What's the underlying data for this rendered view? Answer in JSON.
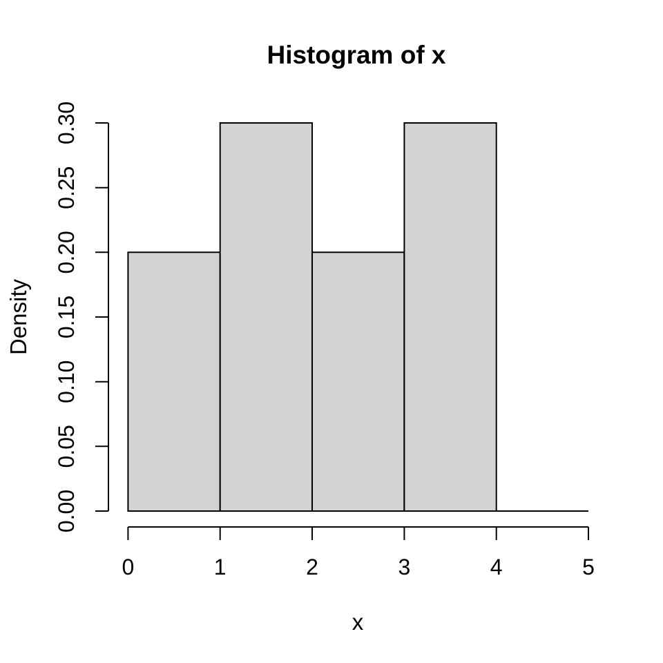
{
  "figure": {
    "background": "#ffffff"
  },
  "chart_data": {
    "type": "bar",
    "subtype": "histogram",
    "title": "Histogram of x",
    "xlabel": "x",
    "ylabel": "Density",
    "bin_edges": [
      0,
      1,
      2,
      3,
      4,
      5
    ],
    "densities": [
      0.2,
      0.3,
      0.2,
      0.3,
      0.0
    ],
    "x_ticks": [
      0,
      1,
      2,
      3,
      4,
      5
    ],
    "x_tick_labels": [
      "0",
      "1",
      "2",
      "3",
      "4",
      "5"
    ],
    "y_ticks": [
      0.0,
      0.05,
      0.1,
      0.15,
      0.2,
      0.25,
      0.3
    ],
    "y_tick_labels": [
      "0.00",
      "0.05",
      "0.10",
      "0.15",
      "0.20",
      "0.25",
      "0.30"
    ],
    "xlim": [
      0,
      5
    ],
    "ylim": [
      0,
      0.3
    ],
    "grid": false,
    "legend": false,
    "bar_fill": "#d3d3d3",
    "bar_stroke": "#000000",
    "axis_color": "#000000",
    "text_color": "#000000"
  }
}
